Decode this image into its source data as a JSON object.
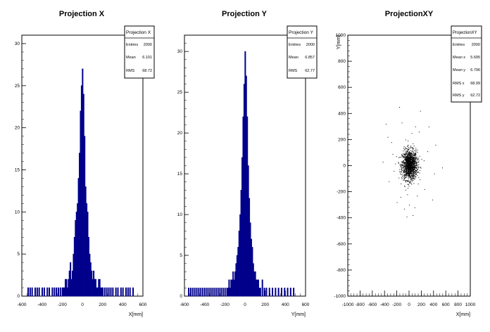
{
  "chart_data": [
    {
      "type": "bar",
      "title": "Projection X",
      "xlabel": "X[mm]",
      "ylabel": "",
      "xlim": [
        -600,
        600
      ],
      "ylim": [
        0,
        31
      ],
      "xticks": [
        -600,
        -400,
        -200,
        0,
        200,
        400,
        600
      ],
      "yticks": [
        0,
        5,
        10,
        15,
        20,
        25,
        30
      ],
      "color": "#00008b",
      "stats": {
        "title": "Projection X",
        "rows": [
          {
            "label": "Entries",
            "value": "2000"
          },
          {
            "label": "Mean",
            "value": "6.101"
          },
          {
            "label": "RMS",
            "value": "68.72"
          }
        ]
      },
      "bin_width": 5,
      "x": [
        -540,
        -520,
        -500,
        -470,
        -450,
        -430,
        -400,
        -380,
        -350,
        -330,
        -300,
        -280,
        -260,
        -240,
        -220,
        -200,
        -190,
        -180,
        -170,
        -160,
        -150,
        -140,
        -130,
        -120,
        -110,
        -100,
        -90,
        -80,
        -70,
        -60,
        -50,
        -40,
        -30,
        -20,
        -10,
        0,
        10,
        20,
        30,
        40,
        50,
        60,
        70,
        80,
        90,
        100,
        110,
        120,
        130,
        140,
        150,
        160,
        170,
        180,
        190,
        200,
        220,
        240,
        260,
        280,
        300,
        330,
        350,
        380,
        400,
        430,
        450,
        470,
        500
      ],
      "values": [
        1,
        1,
        1,
        1,
        1,
        1,
        1,
        1,
        1,
        1,
        1,
        1,
        1,
        1,
        1,
        1,
        1,
        1,
        2,
        2,
        1,
        2,
        3,
        4,
        2,
        3,
        5,
        7,
        9,
        10,
        11,
        14,
        17,
        22,
        25,
        27,
        24,
        19,
        13,
        11,
        10,
        7,
        5,
        4,
        3,
        2,
        3,
        2,
        2,
        1,
        1,
        2,
        2,
        1,
        1,
        1,
        1,
        1,
        1,
        1,
        1,
        1,
        1,
        1,
        1,
        1,
        1,
        1,
        1
      ]
    },
    {
      "type": "bar",
      "title": "Projection Y",
      "xlabel": "Y[mm]",
      "ylabel": "",
      "xlim": [
        -600,
        600
      ],
      "ylim": [
        0,
        32
      ],
      "xticks": [
        -600,
        -400,
        -200,
        0,
        200,
        400,
        600
      ],
      "yticks": [
        0,
        5,
        10,
        15,
        20,
        25,
        30
      ],
      "color": "#00008b",
      "stats": {
        "title": "Projection Y",
        "rows": [
          {
            "label": "Entries",
            "value": "2000"
          },
          {
            "label": "Mean",
            "value": "6.857"
          },
          {
            "label": "RMS",
            "value": "62.77"
          }
        ]
      },
      "bin_width": 5,
      "x": [
        -560,
        -540,
        -520,
        -500,
        -480,
        -460,
        -440,
        -420,
        -400,
        -380,
        -360,
        -340,
        -320,
        -300,
        -280,
        -260,
        -240,
        -220,
        -200,
        -180,
        -170,
        -160,
        -150,
        -140,
        -130,
        -120,
        -110,
        -100,
        -90,
        -80,
        -70,
        -60,
        -50,
        -40,
        -30,
        -20,
        -10,
        0,
        10,
        20,
        30,
        40,
        50,
        60,
        70,
        80,
        90,
        100,
        110,
        120,
        130,
        140,
        150,
        170,
        190,
        210,
        240,
        270,
        300,
        330,
        360,
        390,
        420,
        450,
        480
      ],
      "values": [
        1,
        1,
        1,
        1,
        1,
        1,
        1,
        1,
        1,
        1,
        1,
        1,
        1,
        1,
        1,
        1,
        1,
        1,
        1,
        1,
        1,
        2,
        1,
        2,
        2,
        3,
        2,
        3,
        4,
        5,
        6,
        8,
        10,
        13,
        17,
        22,
        26,
        30,
        27,
        22,
        16,
        12,
        9,
        7,
        6,
        4,
        3,
        3,
        2,
        2,
        2,
        1,
        1,
        2,
        1,
        1,
        1,
        1,
        1,
        1,
        1,
        1,
        1,
        1,
        1
      ]
    },
    {
      "type": "scatter",
      "title": "ProjectionXY",
      "xlabel": "X[mm]",
      "ylabel": "Y[mm]",
      "xlim": [
        -1000,
        1000
      ],
      "ylim": [
        -1000,
        1000
      ],
      "xticks": [
        -1000,
        -800,
        -600,
        -400,
        -200,
        0,
        200,
        400,
        600,
        800,
        1000
      ],
      "yticks": [
        -1000,
        -800,
        -600,
        -400,
        -200,
        0,
        200,
        400,
        600,
        800,
        1000
      ],
      "color": "#000000",
      "stats": {
        "title": "ProjectionXY",
        "rows": [
          {
            "label": "Entries",
            "value": "2000"
          },
          {
            "label": "Mean x",
            "value": "5.695"
          },
          {
            "label": "Mean y",
            "value": "6.796"
          },
          {
            "label": "RMS x",
            "value": "68.99"
          },
          {
            "label": "RMS y",
            "value": "62.72"
          }
        ]
      },
      "sample_points": [
        [
          -160,
          450
        ],
        [
          180,
          420
        ],
        [
          -380,
          320
        ],
        [
          320,
          300
        ],
        [
          -290,
          180
        ],
        [
          430,
          160
        ],
        [
          -430,
          30
        ],
        [
          540,
          -15
        ],
        [
          -120,
          330
        ],
        [
          100,
          300
        ],
        [
          -200,
          -280
        ],
        [
          250,
          -180
        ],
        [
          -40,
          -390
        ],
        [
          60,
          -380
        ],
        [
          -330,
          -120
        ],
        [
          410,
          -60
        ],
        [
          -270,
          90
        ],
        [
          300,
          110
        ],
        [
          160,
          260
        ],
        [
          -60,
          200
        ],
        [
          40,
          250
        ],
        [
          -140,
          -240
        ],
        [
          130,
          -230
        ],
        [
          -250,
          -40
        ],
        [
          240,
          40
        ],
        [
          0,
          -300
        ],
        [
          -80,
          -330
        ],
        [
          90,
          -320
        ],
        [
          380,
          -260
        ],
        [
          -350,
          220
        ]
      ]
    }
  ]
}
